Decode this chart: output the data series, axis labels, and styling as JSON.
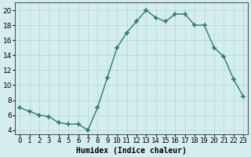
{
  "x": [
    0,
    1,
    2,
    3,
    4,
    5,
    6,
    7,
    8,
    9,
    10,
    11,
    12,
    13,
    14,
    15,
    16,
    17,
    18,
    19,
    20,
    21,
    22,
    23
  ],
  "y": [
    7.0,
    6.5,
    6.0,
    5.8,
    5.0,
    4.8,
    4.8,
    4.0,
    7.0,
    11.0,
    15.0,
    17.0,
    18.5,
    20.0,
    19.0,
    18.5,
    19.5,
    19.5,
    18.0,
    18.0,
    15.0,
    13.8,
    10.8,
    8.5
  ],
  "line_color": "#2d7a6e",
  "marker": "+",
  "marker_size": 4,
  "marker_lw": 1.2,
  "line_width": 1.0,
  "bg_color": "#d4eeee",
  "grid_color_h": "#b8d8d8",
  "grid_color_v": "#b8d8d8",
  "xlabel": "Humidex (Indice chaleur)",
  "xlim": [
    -0.5,
    23.5
  ],
  "ylim": [
    3.5,
    21.0
  ],
  "yticks": [
    4,
    6,
    8,
    10,
    12,
    14,
    16,
    18,
    20
  ],
  "xtick_labels": [
    "0",
    "1",
    "2",
    "3",
    "4",
    "5",
    "6",
    "7",
    "8",
    "9",
    "10",
    "11",
    "12",
    "13",
    "14",
    "15",
    "16",
    "17",
    "18",
    "19",
    "20",
    "21",
    "22",
    "23"
  ],
  "label_fontsize": 7,
  "tick_fontsize": 6.5
}
